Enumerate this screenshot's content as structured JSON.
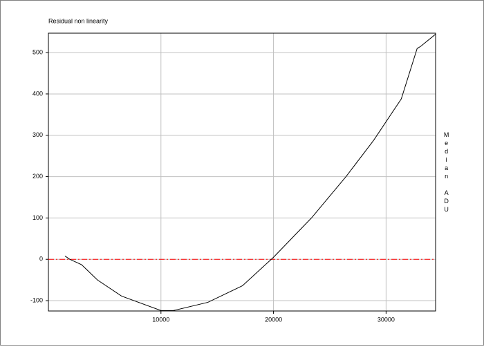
{
  "chart_data": {
    "type": "line",
    "title": "Residual non linearity",
    "y_label": "Median ADU",
    "x": [
      1470,
      1900,
      2950,
      4360,
      6500,
      10000,
      11100,
      14170,
      17240,
      20000,
      23370,
      26440,
      28900,
      31350,
      32760,
      33070,
      34420
    ],
    "series": [
      {
        "color": "#000000",
        "values": [
          8,
          0,
          -13,
          -50,
          -89,
          -124,
          -124,
          -104,
          -64,
          5,
          100,
          200,
          288,
          388,
          510,
          515,
          545
        ]
      }
    ],
    "xlim": [
      0,
      34400
    ],
    "xticks": [
      10000,
      20000,
      30000
    ],
    "ylim": [
      -125,
      547
    ],
    "yticks": [
      -100,
      0,
      100,
      200,
      300,
      400,
      500
    ],
    "grid": true,
    "reference_line": {
      "value": 0,
      "color": "#ff0000"
    }
  }
}
